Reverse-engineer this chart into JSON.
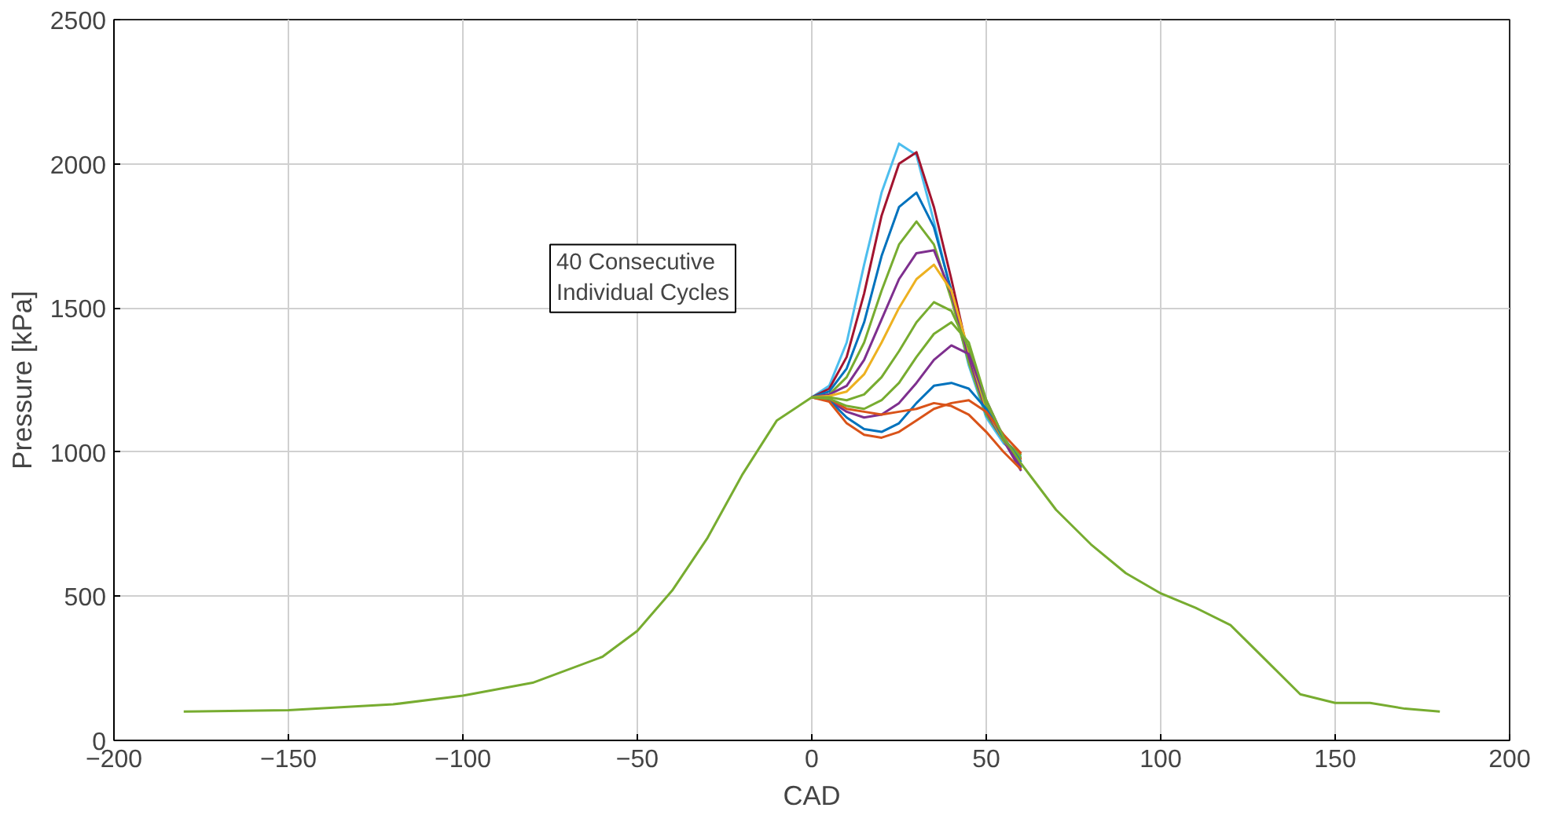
{
  "chart_data": {
    "type": "line",
    "xlabel": "CAD",
    "ylabel": "Pressure [kPa]",
    "annotations": [
      "40 Consecutive\nIndividual Cycles"
    ],
    "x": [
      -180,
      -150,
      -120,
      -100,
      -80,
      -60,
      -50,
      -40,
      -30,
      -20,
      -10,
      0,
      5,
      10,
      15,
      20,
      25,
      30,
      35,
      40,
      45,
      50,
      55,
      60,
      70,
      80,
      90,
      100,
      110,
      120,
      130,
      140,
      150,
      160,
      170,
      180
    ],
    "series": [
      {
        "color": "#4dbeee",
        "values": [
          null,
          null,
          null,
          null,
          null,
          null,
          null,
          null,
          null,
          null,
          null,
          1190,
          1230,
          1380,
          1650,
          1900,
          2070,
          2030,
          1800,
          1550,
          1300,
          1120,
          1030,
          985,
          null,
          null,
          null,
          null,
          null,
          null,
          null,
          null,
          null,
          null,
          null,
          null
        ]
      },
      {
        "color": "#a2142f",
        "values": [
          null,
          null,
          null,
          null,
          null,
          null,
          null,
          null,
          null,
          null,
          null,
          1190,
          1220,
          1330,
          1550,
          1820,
          2000,
          2040,
          1850,
          1600,
          1330,
          1140,
          1040,
          975,
          null,
          null,
          null,
          null,
          null,
          null,
          null,
          null,
          null,
          null,
          null,
          null
        ]
      },
      {
        "color": "#0072bd",
        "values": [
          null,
          null,
          null,
          null,
          null,
          null,
          null,
          null,
          null,
          null,
          null,
          1190,
          1210,
          1290,
          1450,
          1680,
          1850,
          1900,
          1780,
          1560,
          1320,
          1130,
          1040,
          945,
          null,
          null,
          null,
          null,
          null,
          null,
          null,
          null,
          null,
          null,
          null,
          null
        ]
      },
      {
        "color": "#77ac30",
        "values": [
          null,
          null,
          null,
          null,
          null,
          null,
          null,
          null,
          null,
          null,
          null,
          1190,
          1200,
          1260,
          1380,
          1560,
          1720,
          1800,
          1720,
          1530,
          1310,
          1130,
          1040,
          990,
          null,
          null,
          null,
          null,
          null,
          null,
          null,
          null,
          null,
          null,
          null,
          null
        ]
      },
      {
        "color": "#7e2f8e",
        "values": [
          null,
          null,
          null,
          null,
          null,
          null,
          null,
          null,
          null,
          null,
          null,
          1190,
          1200,
          1230,
          1320,
          1460,
          1600,
          1690,
          1700,
          1550,
          1330,
          1140,
          1040,
          935,
          null,
          null,
          null,
          null,
          null,
          null,
          null,
          null,
          null,
          null,
          null,
          null
        ]
      },
      {
        "color": "#edb120",
        "values": [
          null,
          null,
          null,
          null,
          null,
          null,
          null,
          null,
          null,
          null,
          null,
          1190,
          1195,
          1210,
          1270,
          1380,
          1500,
          1600,
          1650,
          1560,
          1350,
          1150,
          1040,
          970,
          null,
          null,
          null,
          null,
          null,
          null,
          null,
          null,
          null,
          null,
          null,
          null
        ]
      },
      {
        "color": "#77ac30",
        "values": [
          null,
          null,
          null,
          null,
          null,
          null,
          null,
          null,
          null,
          null,
          null,
          1190,
          1190,
          1180,
          1200,
          1260,
          1350,
          1450,
          1520,
          1490,
          1360,
          1160,
          1040,
          980,
          null,
          null,
          null,
          null,
          null,
          null,
          null,
          null,
          null,
          null,
          null,
          null
        ]
      },
      {
        "color": "#7e2f8e",
        "values": [
          null,
          null,
          null,
          null,
          null,
          null,
          null,
          null,
          null,
          null,
          null,
          1190,
          1180,
          1140,
          1120,
          1130,
          1170,
          1240,
          1320,
          1370,
          1340,
          1180,
          1050,
          950,
          null,
          null,
          null,
          null,
          null,
          null,
          null,
          null,
          null,
          null,
          null,
          null
        ]
      },
      {
        "color": "#0072bd",
        "values": [
          null,
          null,
          null,
          null,
          null,
          null,
          null,
          null,
          null,
          null,
          null,
          1190,
          1180,
          1120,
          1080,
          1070,
          1100,
          1170,
          1230,
          1240,
          1220,
          1150,
          1050,
          965,
          null,
          null,
          null,
          null,
          null,
          null,
          null,
          null,
          null,
          null,
          null,
          null
        ]
      },
      {
        "color": "#d95319",
        "values": [
          null,
          null,
          null,
          null,
          null,
          null,
          null,
          null,
          null,
          null,
          null,
          1190,
          1175,
          1100,
          1060,
          1050,
          1070,
          1110,
          1150,
          1170,
          1180,
          1140,
          1060,
          995,
          null,
          null,
          null,
          null,
          null,
          null,
          null,
          null,
          null,
          null,
          null,
          null
        ]
      },
      {
        "color": "#d95319",
        "values": [
          null,
          null,
          null,
          null,
          null,
          null,
          null,
          null,
          null,
          null,
          null,
          1190,
          1185,
          1150,
          1140,
          1130,
          1140,
          1150,
          1170,
          1160,
          1130,
          1070,
          1000,
          940,
          null,
          null,
          null,
          null,
          null,
          null,
          null,
          null,
          null,
          null,
          null,
          null
        ]
      },
      {
        "color": "#77ac30",
        "values": [
          100,
          105,
          125,
          155,
          200,
          290,
          380,
          520,
          700,
          920,
          1110,
          1190,
          1185,
          1160,
          1150,
          1180,
          1240,
          1330,
          1410,
          1450,
          1380,
          1180,
          1050,
          960,
          800,
          680,
          580,
          510,
          460,
          400,
          280,
          160,
          130,
          130,
          110,
          100
        ]
      }
    ],
    "xlim": [
      -200,
      200
    ],
    "ylim": [
      0,
      2500
    ],
    "xticks": [
      -200,
      -150,
      -100,
      -50,
      0,
      50,
      100,
      150,
      200
    ],
    "yticks": [
      0,
      500,
      1000,
      1500,
      2000,
      2500
    ],
    "grid": true
  }
}
